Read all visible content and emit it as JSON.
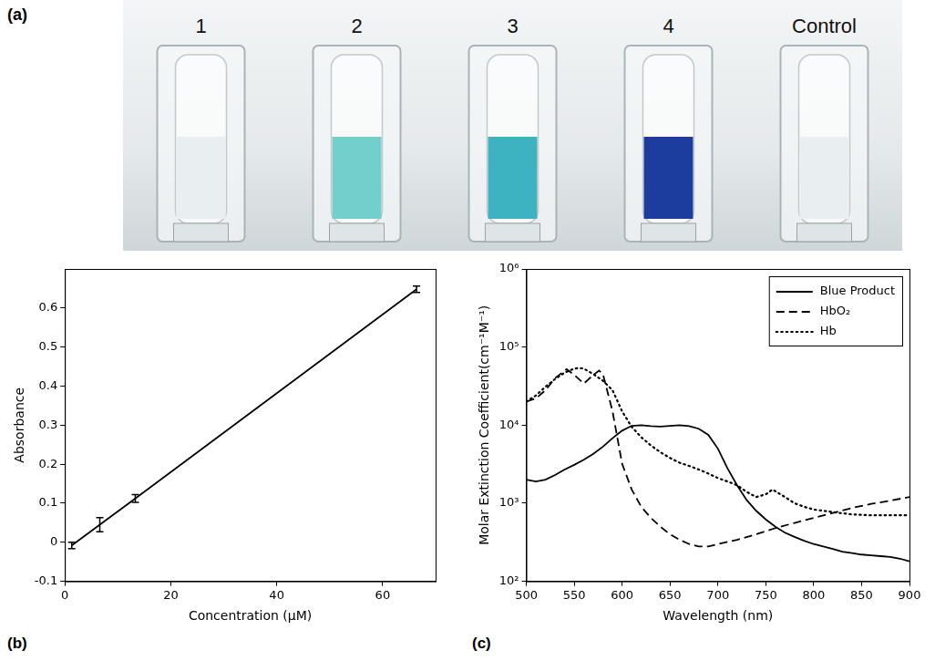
{
  "image": {
    "panel": "(a)",
    "labels": [
      "1",
      "2",
      "3",
      "4",
      "Control"
    ],
    "colors": [
      "#e9eff1",
      "#72cfcb",
      "#3db3c2",
      "#1c3c9e",
      "#e9eff1"
    ]
  },
  "chart_data": [
    {
      "panel": "(b)",
      "type": "line",
      "x_label": "Concentration (μM)",
      "y_label": "Absorbance",
      "xlim": [
        0,
        70
      ],
      "xticks": [
        0,
        20,
        40,
        60
      ],
      "ylim": [
        -0.1,
        0.7
      ],
      "yticks": [
        -0.1,
        0,
        0.1,
        0.2,
        0.3,
        0.4,
        0.5,
        0.6
      ],
      "grid": false,
      "series": [
        {
          "color": "#000000",
          "marker": "none",
          "line_style": "solid",
          "x": [
            1.3,
            6.6,
            13.3,
            66.4
          ],
          "values": [
            -0.008,
            0.045,
            0.112,
            0.648
          ],
          "error": [
            0.008,
            0.018,
            0.01,
            0.008
          ]
        }
      ]
    },
    {
      "panel": "(c)",
      "type": "line",
      "x_label": "Wavelength (nm)",
      "y_label": "Molar Extinction Coefficient(cm⁻¹M⁻¹)",
      "log": "y",
      "grid": false,
      "legend": "upper right",
      "xlim": [
        500,
        900
      ],
      "xticks": [
        500,
        550,
        600,
        650,
        700,
        750,
        800,
        850,
        900
      ],
      "ylim": [
        100,
        1000000
      ],
      "yticks": [
        {
          "value": 100,
          "label": "10²"
        },
        {
          "value": 1000,
          "label": "10³"
        },
        {
          "value": 10000,
          "label": "10⁴"
        },
        {
          "value": 100000,
          "label": "10⁵"
        },
        {
          "value": 1000000,
          "label": "10⁶"
        }
      ],
      "series": [
        {
          "name": "Blue Product",
          "color": "#000000",
          "line_style": "solid",
          "marker": "none",
          "x": [
            500,
            510,
            520,
            530,
            540,
            550,
            560,
            570,
            580,
            590,
            600,
            610,
            620,
            630,
            640,
            650,
            660,
            670,
            680,
            690,
            700,
            710,
            720,
            730,
            740,
            750,
            760,
            770,
            780,
            790,
            800,
            810,
            820,
            830,
            840,
            850,
            860,
            870,
            880,
            890,
            900
          ],
          "values": [
            2000,
            1900,
            2000,
            2300,
            2700,
            3100,
            3600,
            4300,
            5300,
            6800,
            8500,
            9800,
            10000,
            9700,
            9600,
            9800,
            10000,
            9700,
            9000,
            7500,
            5000,
            2800,
            1700,
            1100,
            800,
            620,
            500,
            420,
            370,
            330,
            300,
            280,
            260,
            240,
            230,
            220,
            215,
            210,
            205,
            195,
            180
          ]
        },
        {
          "name": "HbO₂",
          "color": "#000000",
          "line_style": "dashed",
          "marker": "none",
          "x": [
            500,
            510,
            520,
            530,
            542,
            550,
            560,
            570,
            576,
            580,
            590,
            600,
            610,
            620,
            630,
            640,
            650,
            660,
            670,
            680,
            690,
            700,
            720,
            740,
            760,
            780,
            800,
            820,
            840,
            860,
            880,
            900
          ],
          "values": [
            20000,
            22000,
            28000,
            40000,
            52000,
            44000,
            34000,
            44000,
            50000,
            45000,
            15000,
            3200,
            1500,
            900,
            650,
            500,
            400,
            340,
            300,
            280,
            280,
            300,
            340,
            400,
            480,
            560,
            650,
            750,
            870,
            980,
            1080,
            1200
          ]
        },
        {
          "name": "Hb",
          "color": "#000000",
          "line_style": "dotted",
          "marker": "none",
          "x": [
            500,
            510,
            520,
            530,
            540,
            550,
            555,
            560,
            570,
            580,
            590,
            600,
            610,
            620,
            630,
            640,
            650,
            660,
            670,
            680,
            690,
            700,
            710,
            720,
            730,
            740,
            750,
            757,
            770,
            780,
            790,
            800,
            820,
            840,
            860,
            880,
            900
          ],
          "values": [
            20000,
            24000,
            31000,
            39000,
            47000,
            53000,
            54000,
            53000,
            45000,
            37000,
            28000,
            15000,
            9500,
            7000,
            5500,
            4500,
            3800,
            3300,
            3000,
            2700,
            2400,
            2100,
            1900,
            1700,
            1400,
            1200,
            1300,
            1500,
            1200,
            1000,
            900,
            830,
            770,
            720,
            700,
            700,
            700
          ]
        }
      ]
    }
  ]
}
